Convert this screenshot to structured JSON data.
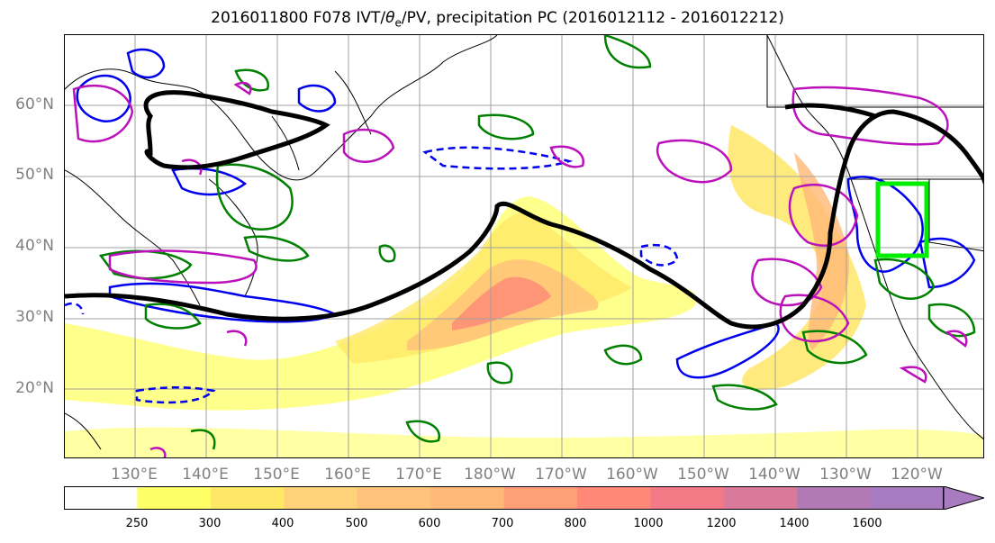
{
  "title": {
    "prefix": "2016011800 F078 IVT/",
    "theta": "θ",
    "theta_sub": "e",
    "suffix": "/PV, precipitation PC (2016012112 - 2016012212)"
  },
  "map": {
    "lat_labels": [
      "60°N",
      "50°N",
      "40°N",
      "30°N",
      "20°N"
    ],
    "lon_labels": [
      "130°E",
      "140°E",
      "150°E",
      "160°E",
      "170°E",
      "180°W",
      "170°W",
      "160°W",
      "150°W",
      "140°W",
      "130°W",
      "120°W"
    ],
    "ivt_colors": [
      "#ffff66",
      "#ffe866",
      "#ffd27a",
      "#ffb877",
      "#ff9f77",
      "#ff8877",
      "#f27a86",
      "#d97a9a",
      "#b27ab5",
      "#a87ac0"
    ],
    "contour_colors": {
      "pv": "#0000ee",
      "theta": "#008000",
      "precip": "#bb11bb",
      "box": "#00ee00",
      "jet": "#000000"
    }
  },
  "colorbar": {
    "ticks": [
      "250",
      "300",
      "400",
      "500",
      "600",
      "700",
      "800",
      "1000",
      "1200",
      "1400",
      "1600"
    ],
    "colors": [
      "#ffffff",
      "#ffff66",
      "#ffe866",
      "#ffd27a",
      "#ffc27a",
      "#ffb877",
      "#ff9f77",
      "#ff8877",
      "#f27a86",
      "#d97a9a",
      "#b27ab5",
      "#a87ac0"
    ]
  }
}
